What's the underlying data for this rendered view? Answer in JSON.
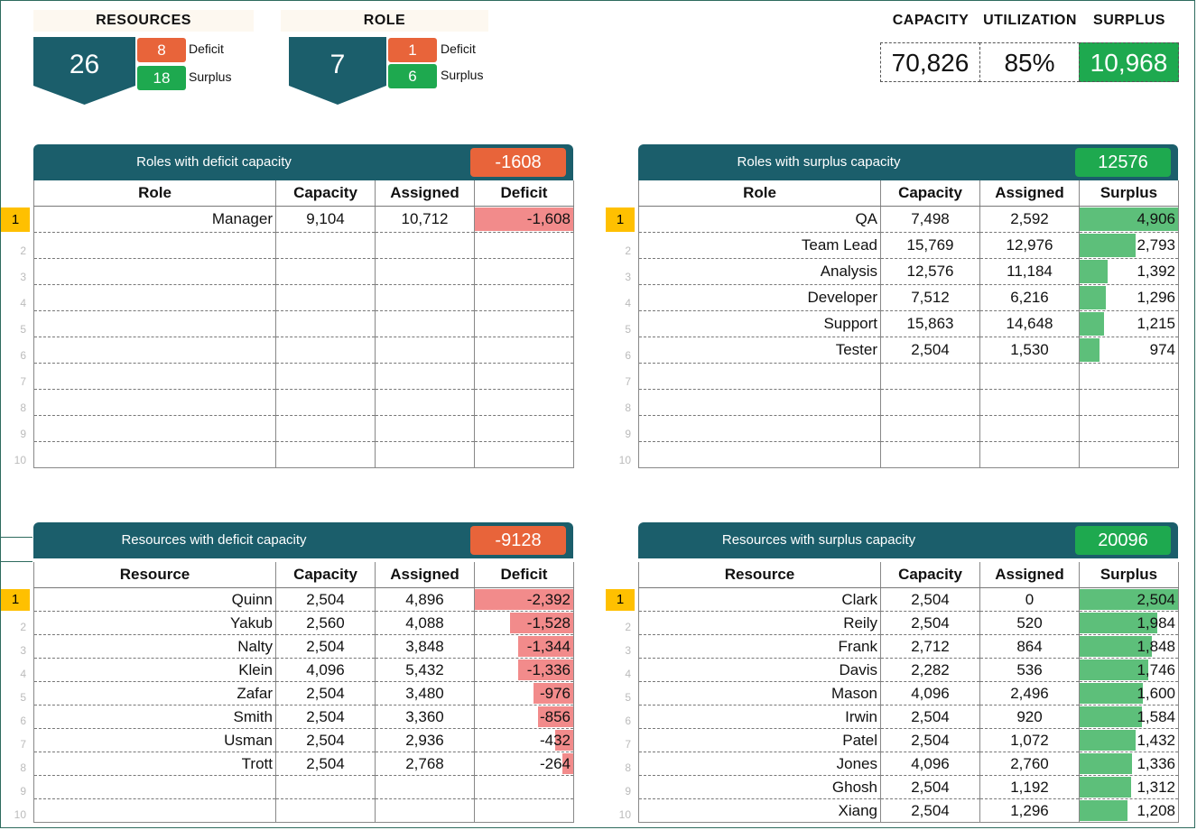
{
  "kpis": {
    "resources": {
      "label": "RESOURCES",
      "value": "26",
      "deficit": "8",
      "surplus": "18",
      "deficit_label": "Deficit",
      "surplus_label": "Surplus"
    },
    "role": {
      "label": "ROLE",
      "value": "7",
      "deficit": "1",
      "surplus": "6",
      "deficit_label": "Deficit",
      "surplus_label": "Surplus"
    },
    "capacity": {
      "label": "CAPACITY",
      "value": "70,826"
    },
    "utilization": {
      "label": "UTILIZATION",
      "value": "85%"
    },
    "surplus": {
      "label": "SURPLUS",
      "value": "10,968"
    }
  },
  "colors": {
    "panel_header": "#1b5e6b",
    "deficit": "#e8643a",
    "surplus": "#1ea94f",
    "deficit_bar": "#f28b8b",
    "surplus_bar": "#5dbf7a",
    "rank_highlight": "#ffc000"
  },
  "panels": {
    "roles_deficit": {
      "title": "Roles with deficit capacity",
      "total": "-1608",
      "headers": [
        "Role",
        "Capacity",
        "Assigned",
        "Deficit"
      ],
      "rows": [
        {
          "name": "Manager",
          "capacity": "9,104",
          "assigned": "10,712",
          "value": "-1,608",
          "fraction": 1.0
        }
      ]
    },
    "roles_surplus": {
      "title": "Roles with surplus capacity",
      "total": "12576",
      "headers": [
        "Role",
        "Capacity",
        "Assigned",
        "Surplus"
      ],
      "rows": [
        {
          "name": "QA",
          "capacity": "7,498",
          "assigned": "2,592",
          "value": "4,906",
          "fraction": 1.0
        },
        {
          "name": "Team Lead",
          "capacity": "15,769",
          "assigned": "12,976",
          "value": "2,793",
          "fraction": 0.569
        },
        {
          "name": "Analysis",
          "capacity": "12,576",
          "assigned": "11,184",
          "value": "1,392",
          "fraction": 0.284
        },
        {
          "name": "Developer",
          "capacity": "7,512",
          "assigned": "6,216",
          "value": "1,296",
          "fraction": 0.264
        },
        {
          "name": "Support",
          "capacity": "15,863",
          "assigned": "14,648",
          "value": "1,215",
          "fraction": 0.248
        },
        {
          "name": "Tester",
          "capacity": "2,504",
          "assigned": "1,530",
          "value": "974",
          "fraction": 0.199
        }
      ]
    },
    "resources_deficit": {
      "title": "Resources with deficit capacity",
      "total": "-9128",
      "headers": [
        "Resource",
        "Capacity",
        "Assigned",
        "Deficit"
      ],
      "rows": [
        {
          "name": "Quinn",
          "capacity": "2,504",
          "assigned": "4,896",
          "value": "-2,392",
          "fraction": 1.0
        },
        {
          "name": "Yakub",
          "capacity": "2,560",
          "assigned": "4,088",
          "value": "-1,528",
          "fraction": 0.639
        },
        {
          "name": "Nalty",
          "capacity": "2,504",
          "assigned": "3,848",
          "value": "-1,344",
          "fraction": 0.562
        },
        {
          "name": "Klein",
          "capacity": "4,096",
          "assigned": "5,432",
          "value": "-1,336",
          "fraction": 0.559
        },
        {
          "name": "Zafar",
          "capacity": "2,504",
          "assigned": "3,480",
          "value": "-976",
          "fraction": 0.408
        },
        {
          "name": "Smith",
          "capacity": "2,504",
          "assigned": "3,360",
          "value": "-856",
          "fraction": 0.358
        },
        {
          "name": "Usman",
          "capacity": "2,504",
          "assigned": "2,936",
          "value": "-432",
          "fraction": 0.181
        },
        {
          "name": "Trott",
          "capacity": "2,504",
          "assigned": "2,768",
          "value": "-264",
          "fraction": 0.11
        }
      ]
    },
    "resources_surplus": {
      "title": "Resources with surplus capacity",
      "total": "20096",
      "headers": [
        "Resource",
        "Capacity",
        "Assigned",
        "Surplus"
      ],
      "rows": [
        {
          "name": "Clark",
          "capacity": "2,504",
          "assigned": "0",
          "value": "2,504",
          "fraction": 1.0
        },
        {
          "name": "Reily",
          "capacity": "2,504",
          "assigned": "520",
          "value": "1,984",
          "fraction": 0.792
        },
        {
          "name": "Frank",
          "capacity": "2,712",
          "assigned": "864",
          "value": "1,848",
          "fraction": 0.738
        },
        {
          "name": "Davis",
          "capacity": "2,282",
          "assigned": "536",
          "value": "1,746",
          "fraction": 0.697
        },
        {
          "name": "Mason",
          "capacity": "4,096",
          "assigned": "2,496",
          "value": "1,600",
          "fraction": 0.639
        },
        {
          "name": "Irwin",
          "capacity": "2,504",
          "assigned": "920",
          "value": "1,584",
          "fraction": 0.633
        },
        {
          "name": "Patel",
          "capacity": "2,504",
          "assigned": "1,072",
          "value": "1,432",
          "fraction": 0.572
        },
        {
          "name": "Jones",
          "capacity": "4,096",
          "assigned": "2,760",
          "value": "1,336",
          "fraction": 0.534
        },
        {
          "name": "Ghosh",
          "capacity": "2,504",
          "assigned": "1,192",
          "value": "1,312",
          "fraction": 0.524
        },
        {
          "name": "Xiang",
          "capacity": "2,504",
          "assigned": "1,296",
          "value": "1,208",
          "fraction": 0.482
        }
      ]
    }
  },
  "row_numbers": [
    "1",
    "2",
    "3",
    "4",
    "5",
    "6",
    "7",
    "8",
    "9",
    "10"
  ]
}
